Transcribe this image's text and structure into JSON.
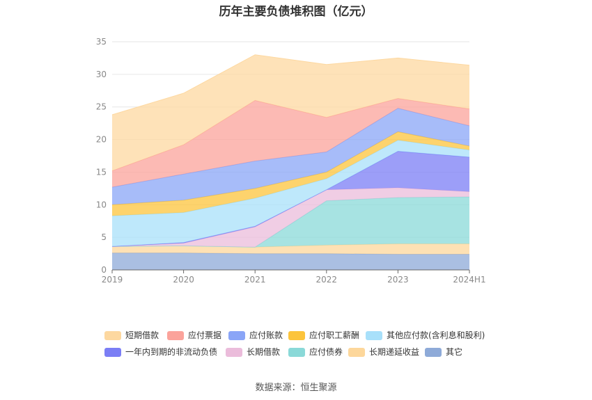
{
  "chart_data": {
    "type": "area",
    "stacked": true,
    "title": "历年主要负债堆积图（亿元）",
    "source": "数据来源：恒生聚源",
    "xlabel": "",
    "ylabel": "",
    "categories": [
      "2019",
      "2020",
      "2021",
      "2022",
      "2023",
      "2024H1"
    ],
    "ylim": [
      0,
      35
    ],
    "yticks": [
      "0",
      "5",
      "10",
      "15",
      "20",
      "25",
      "30",
      "35"
    ],
    "grid": true,
    "legend_position": "bottom",
    "series": [
      {
        "name": "其它",
        "color": "#8eaad8",
        "values": [
          2.6,
          2.6,
          2.5,
          2.5,
          2.4,
          2.4
        ]
      },
      {
        "name": "长期递延收益",
        "color": "#fdd79b",
        "values": [
          1.0,
          1.1,
          1.0,
          1.3,
          1.6,
          1.6
        ]
      },
      {
        "name": "应付债券",
        "color": "#8ad9d8",
        "values": [
          0,
          0,
          0,
          6.8,
          7.1,
          7.2
        ]
      },
      {
        "name": "长期借款",
        "color": "#ebbcdb",
        "values": [
          0,
          0.4,
          3.1,
          1.7,
          1.5,
          0.8
        ]
      },
      {
        "name": "一年内到期的非流动负债",
        "color": "#7b7ef5",
        "values": [
          0,
          0.1,
          0.1,
          0,
          5.6,
          5.3
        ]
      },
      {
        "name": "其他应付款(含利息和股利)",
        "color": "#a8e0fa",
        "values": [
          4.7,
          4.6,
          4.3,
          1.7,
          1.7,
          1.1
        ]
      },
      {
        "name": "应付职工薪酬",
        "color": "#fcc43c",
        "values": [
          1.7,
          1.9,
          1.5,
          1.0,
          1.3,
          0.6
        ]
      },
      {
        "name": "应付账款",
        "color": "#8aa5f7",
        "values": [
          2.7,
          4.0,
          4.2,
          3.1,
          3.6,
          3.1
        ]
      },
      {
        "name": "应付票据",
        "color": "#fba39b",
        "values": [
          2.5,
          4.5,
          9.3,
          5.3,
          1.5,
          2.6
        ]
      },
      {
        "name": "短期借款",
        "color": "#fdd8a0",
        "values": [
          8.6,
          7.9,
          7.0,
          8.1,
          6.2,
          6.7
        ]
      }
    ],
    "legend": [
      {
        "name": "短期借款",
        "color": "#fdd8a0"
      },
      {
        "name": "应付票据",
        "color": "#fba39b"
      },
      {
        "name": "应付账款",
        "color": "#8aa5f7"
      },
      {
        "name": "应付职工薪酬",
        "color": "#fcc43c"
      },
      {
        "name": "其他应付款(含利息和股利)",
        "color": "#a8e0fa"
      },
      {
        "name": "一年内到期的非流动负债",
        "color": "#7b7ef5"
      },
      {
        "name": "长期借款",
        "color": "#ebbcdb"
      },
      {
        "name": "应付债券",
        "color": "#8ad9d8"
      },
      {
        "name": "长期递延收益",
        "color": "#fdd79b"
      },
      {
        "name": "其它",
        "color": "#8eaad8"
      }
    ]
  }
}
